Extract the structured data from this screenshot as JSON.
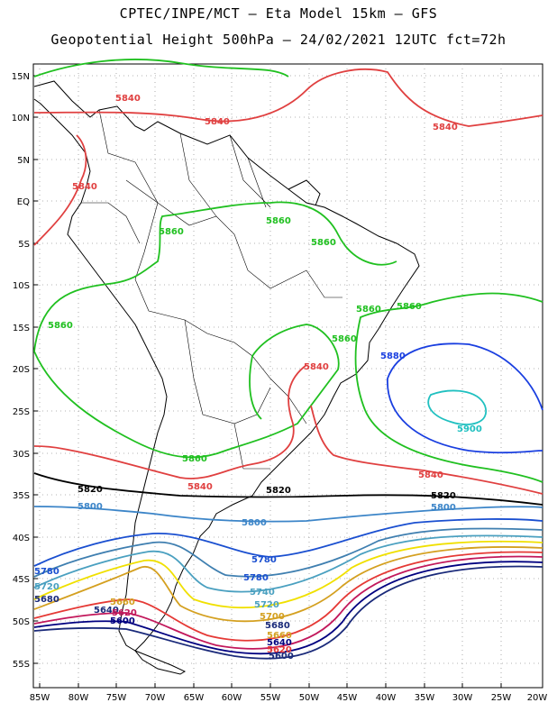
{
  "header": {
    "line1": "CPTEC/INPE/MCT –  Eta Model 15km – GFS",
    "line2": "Geopotential Height 500hPa – 24/02/2021 12UTC fct=72h"
  },
  "map": {
    "lat_labels": [
      "15N",
      "10N",
      "5N",
      "EQ",
      "5S",
      "10S",
      "15S",
      "20S",
      "25S",
      "30S",
      "35S",
      "40S",
      "45S",
      "50S",
      "55S"
    ],
    "lon_labels": [
      "85W",
      "80W",
      "75W",
      "70W",
      "65W",
      "60W",
      "55W",
      "50W",
      "45W",
      "40W",
      "35W",
      "30W",
      "25W",
      "20W"
    ],
    "lon_range": [
      -86,
      -20
    ],
    "lat_range": [
      -58,
      17
    ],
    "grid": "dotted"
  },
  "contour_colors": {
    "c5600": "#1a2a7a",
    "c5620": "#1a2a7a",
    "c5640": "#000080",
    "c5660": "#c2185b",
    "c5680": "#e53935",
    "c5700": "#d4a020",
    "c5720": "#f0e000",
    "c5740": "#4aa0c0",
    "c5760": "#3f7fb0",
    "c5780": "#1a4fd0",
    "c5800": "#3c85c8",
    "c5820": "#000000",
    "c5840": "#e04040",
    "c5860": "#20c020",
    "c5880": "#1a3fe0",
    "c5900": "#20c0c0"
  },
  "contour_labels": [
    {
      "text": "5840",
      "color": "#e04040"
    },
    {
      "text": "5840",
      "color": "#e04040"
    },
    {
      "text": "5840",
      "color": "#e04040"
    },
    {
      "text": "5840",
      "color": "#e04040"
    },
    {
      "text": "5860",
      "color": "#20c020"
    },
    {
      "text": "5860",
      "color": "#20c020"
    },
    {
      "text": "5860",
      "color": "#20c020"
    },
    {
      "text": "5860",
      "color": "#20c020"
    },
    {
      "text": "5860",
      "color": "#20c020"
    },
    {
      "text": "5860",
      "color": "#20c020"
    },
    {
      "text": "5860",
      "color": "#20c020"
    },
    {
      "text": "5880",
      "color": "#1a3fe0"
    },
    {
      "text": "5840",
      "color": "#e04040"
    },
    {
      "text": "5900",
      "color": "#20c0c0"
    },
    {
      "text": "5860",
      "color": "#20c020"
    },
    {
      "text": "5840",
      "color": "#e04040"
    },
    {
      "text": "5840",
      "color": "#e04040"
    },
    {
      "text": "5820",
      "color": "#000000"
    },
    {
      "text": "5820",
      "color": "#000000"
    },
    {
      "text": "5820",
      "color": "#000000"
    },
    {
      "text": "5800",
      "color": "#3c85c8"
    },
    {
      "text": "5800",
      "color": "#3c85c8"
    },
    {
      "text": "5800",
      "color": "#3c85c8"
    },
    {
      "text": "5780",
      "color": "#1a4fd0"
    },
    {
      "text": "5780",
      "color": "#1a4fd0"
    },
    {
      "text": "5780",
      "color": "#1a4fd0"
    },
    {
      "text": "5740",
      "color": "#4aa0c0"
    },
    {
      "text": "5720",
      "color": "#4aa0c0"
    },
    {
      "text": "5720",
      "color": "#4aa0c0"
    },
    {
      "text": "5700",
      "color": "#d4a020"
    },
    {
      "text": "5680",
      "color": "#1a2a7a"
    },
    {
      "text": "5680",
      "color": "#1a2a7a"
    },
    {
      "text": "5660",
      "color": "#d4a020"
    },
    {
      "text": "5660",
      "color": "#d4a020"
    },
    {
      "text": "5640",
      "color": "#1a2a7a"
    },
    {
      "text": "5640",
      "color": "#000080"
    },
    {
      "text": "5620",
      "color": "#c2185b"
    },
    {
      "text": "5620",
      "color": "#e53935"
    },
    {
      "text": "5600",
      "color": "#000080"
    },
    {
      "text": "5600",
      "color": "#1a2a7a"
    }
  ]
}
